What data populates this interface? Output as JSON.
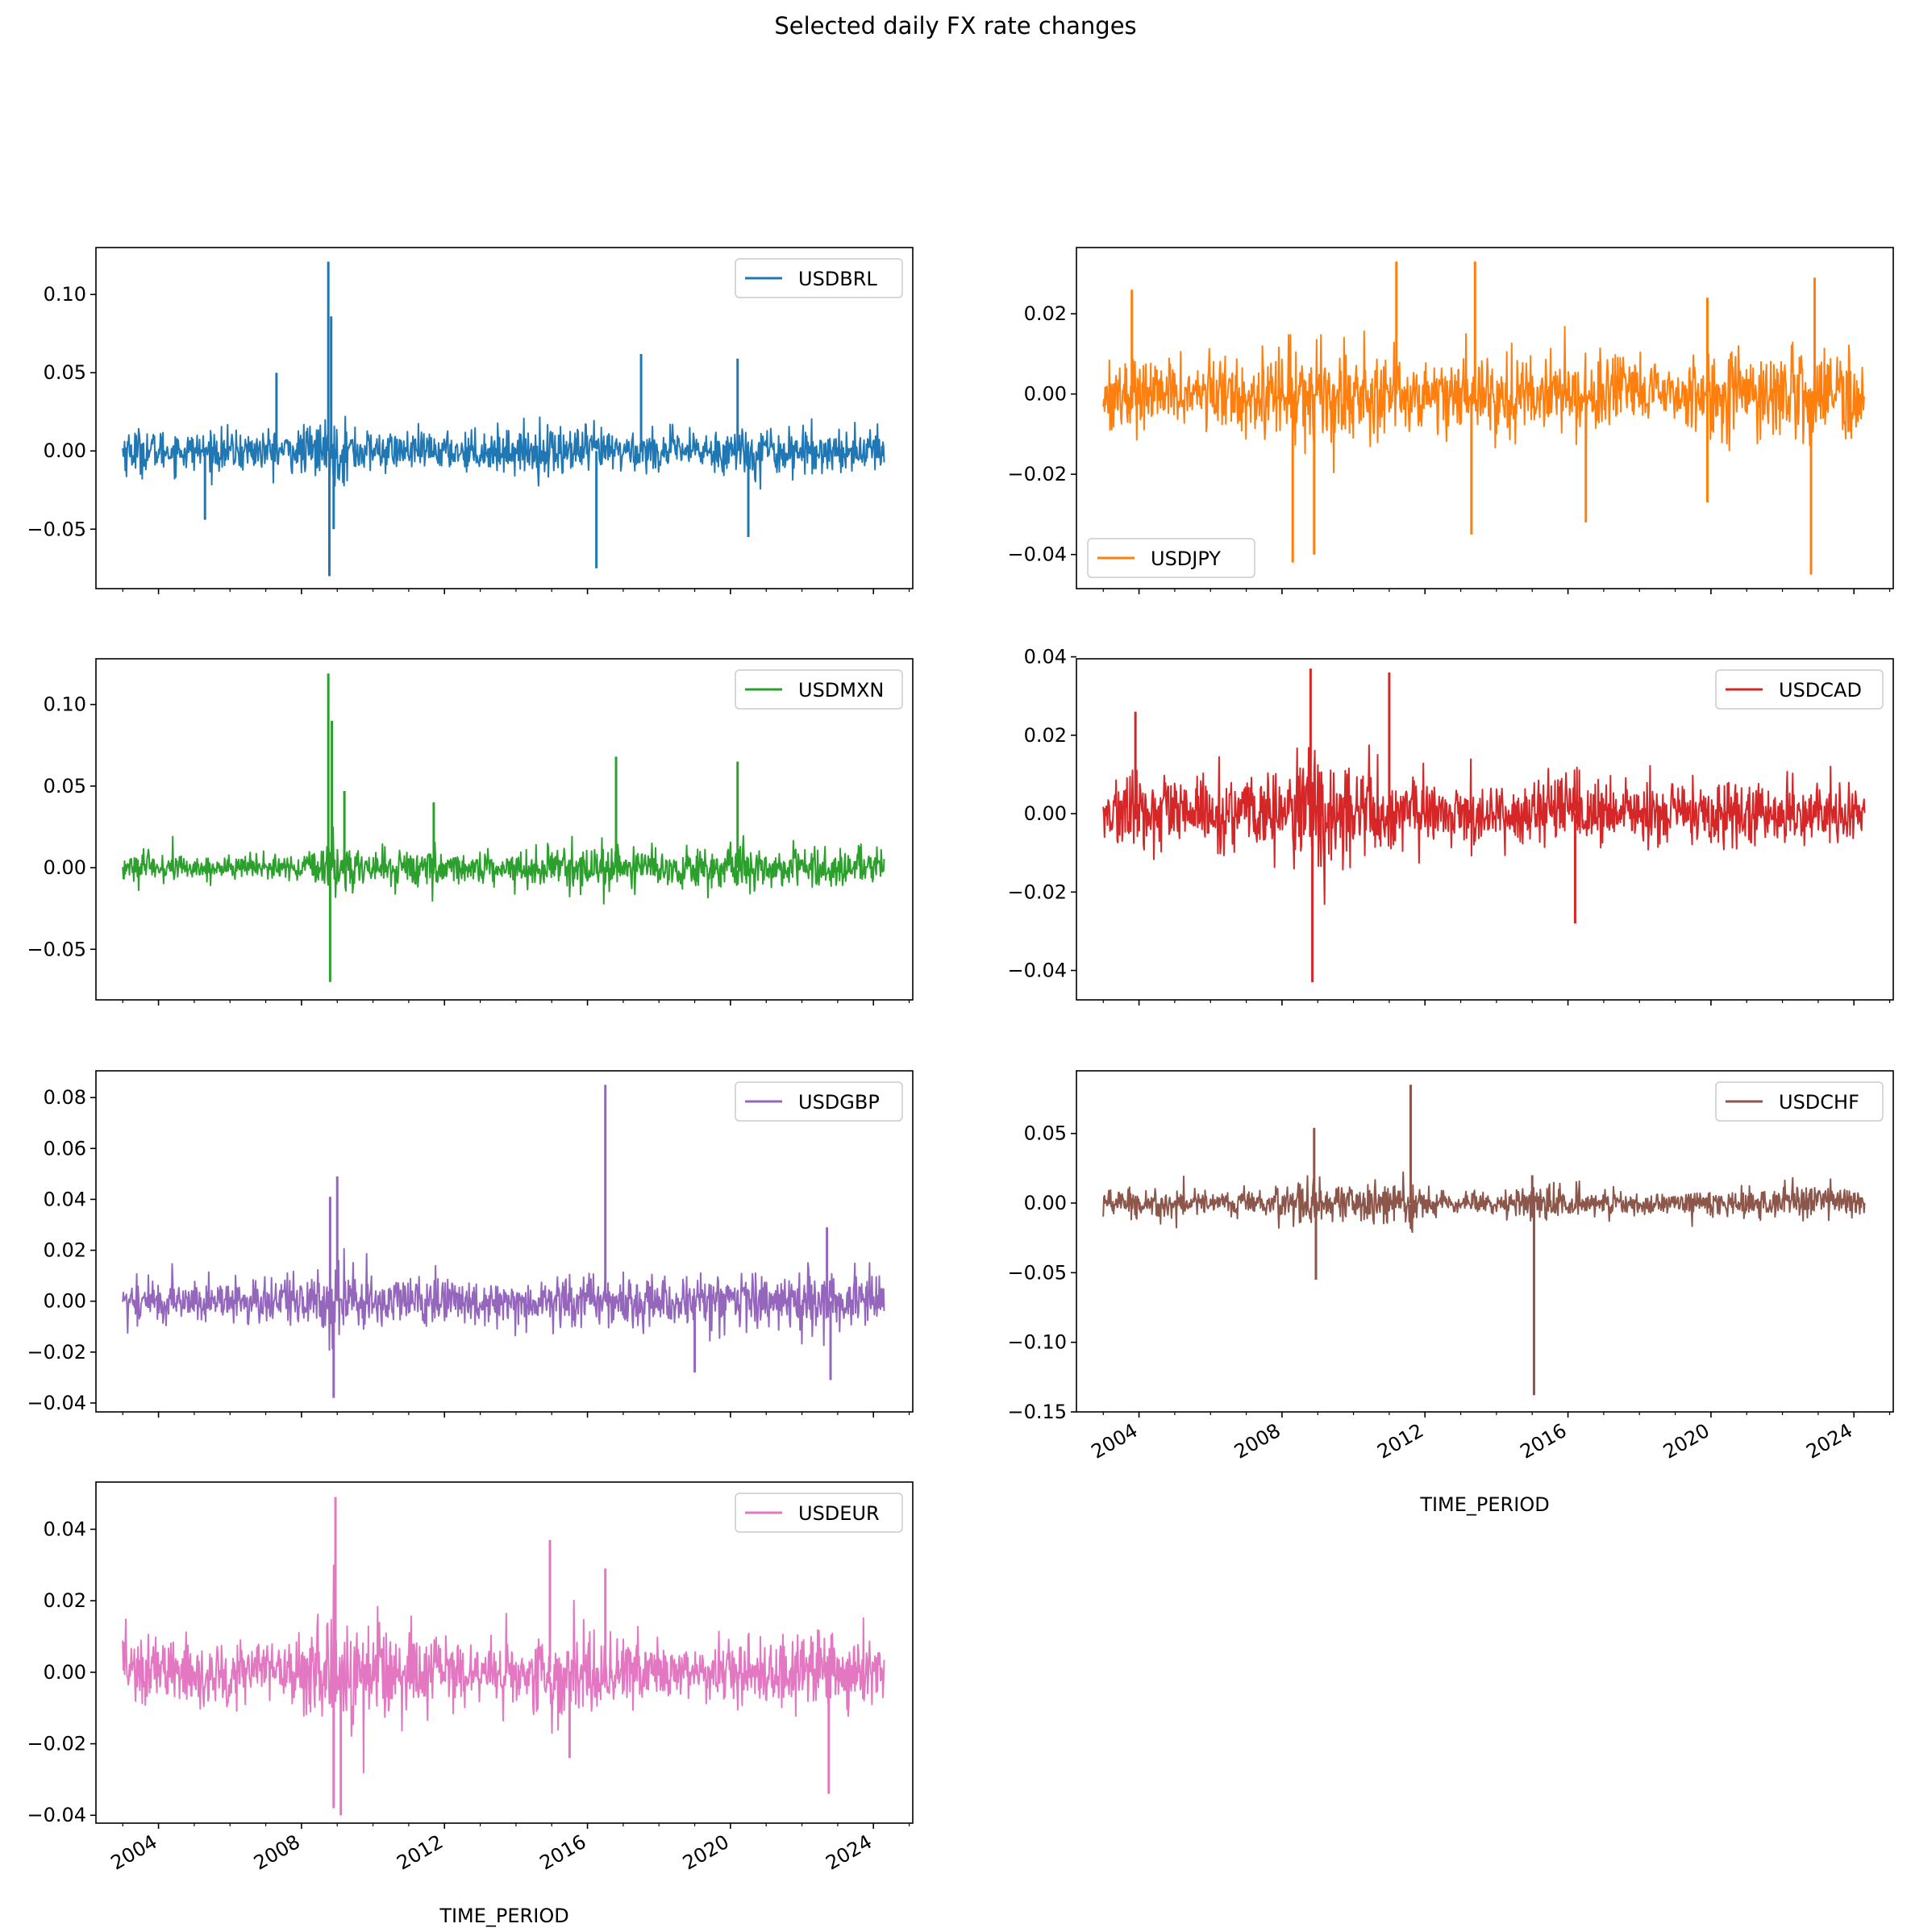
{
  "title": "Selected daily FX rate changes",
  "xlabel": "TIME_PERIOD",
  "x_tick_labels": [
    "2004",
    "2008",
    "2012",
    "2016",
    "2020",
    "2024"
  ],
  "x_tick_years": [
    2004,
    2008,
    2012,
    2016,
    2020,
    2024
  ],
  "chart_data": [
    {
      "type": "line",
      "name": "USDBRL",
      "color": "#1f77b4",
      "x_range": [
        2003.0,
        2024.3
      ],
      "ylim": [
        -0.088,
        0.13
      ],
      "yticks": [
        0.1,
        0.05,
        0.0,
        -0.05
      ],
      "ytick_labels": [
        "0.10",
        "0.05",
        "0.00",
        "−0.05"
      ],
      "legend_loc": "upper right",
      "noise_std": 0.0065,
      "noise_envelope": [
        [
          2003,
          1.2
        ],
        [
          2004,
          1.0
        ],
        [
          2005,
          0.9
        ],
        [
          2006,
          1.0
        ],
        [
          2007,
          1.0
        ],
        [
          2008,
          1.1
        ],
        [
          2008.8,
          1.8
        ],
        [
          2009.3,
          1.4
        ],
        [
          2010,
          1.0
        ],
        [
          2011,
          0.9
        ],
        [
          2012,
          0.9
        ],
        [
          2013,
          1.0
        ],
        [
          2014,
          1.0
        ],
        [
          2015,
          1.3
        ],
        [
          2016,
          1.2
        ],
        [
          2017,
          1.0
        ],
        [
          2018,
          1.0
        ],
        [
          2019,
          0.9
        ],
        [
          2020,
          1.2
        ],
        [
          2021,
          1.3
        ],
        [
          2022,
          1.1
        ],
        [
          2023,
          1.0
        ],
        [
          2024.3,
          1.0
        ]
      ],
      "spikes": [
        [
          2008.75,
          0.121
        ],
        [
          2008.78,
          -0.08
        ],
        [
          2008.83,
          0.086
        ],
        [
          2008.9,
          -0.05
        ],
        [
          2016.25,
          -0.075
        ],
        [
          2017.5,
          0.062
        ],
        [
          2020.2,
          0.059
        ],
        [
          2020.5,
          -0.055
        ],
        [
          2007.3,
          0.05
        ],
        [
          2005.3,
          -0.044
        ]
      ]
    },
    {
      "type": "line",
      "name": "USDJPY",
      "color": "#ff7f0e",
      "x_range": [
        2003.0,
        2024.3
      ],
      "ylim": [
        -0.0485,
        0.0365
      ],
      "yticks": [
        0.02,
        0.0,
        -0.02,
        -0.04
      ],
      "ytick_labels": [
        "0.02",
        "0.00",
        "−0.02",
        "−0.04"
      ],
      "legend_loc": "lower left",
      "noise_std": 0.0045,
      "noise_envelope": [
        [
          2003,
          1.0
        ],
        [
          2005,
          0.9
        ],
        [
          2007,
          1.0
        ],
        [
          2008,
          1.3
        ],
        [
          2009,
          1.5
        ],
        [
          2010,
          1.3
        ],
        [
          2011,
          1.2
        ],
        [
          2012,
          0.9
        ],
        [
          2013,
          1.4
        ],
        [
          2014,
          1.1
        ],
        [
          2015,
          0.9
        ],
        [
          2016,
          1.3
        ],
        [
          2017,
          1.0
        ],
        [
          2019,
          0.8
        ],
        [
          2020,
          1.0
        ],
        [
          2022,
          1.3
        ],
        [
          2023,
          1.4
        ],
        [
          2024.3,
          1.2
        ]
      ],
      "spikes": [
        [
          2008.3,
          -0.042
        ],
        [
          2008.9,
          -0.04
        ],
        [
          2011.2,
          0.033
        ],
        [
          2013.3,
          -0.035
        ],
        [
          2013.4,
          0.033
        ],
        [
          2022.8,
          -0.045
        ],
        [
          2022.9,
          0.029
        ],
        [
          2016.5,
          -0.032
        ],
        [
          2019.9,
          -0.027
        ],
        [
          2019.9,
          0.024
        ],
        [
          2003.8,
          0.026
        ]
      ]
    },
    {
      "type": "line",
      "name": "USDMXN",
      "color": "#2ca02c",
      "x_range": [
        2003.0,
        2024.3
      ],
      "ylim": [
        -0.081,
        0.128
      ],
      "yticks": [
        0.1,
        0.05,
        0.0,
        -0.05
      ],
      "ytick_labels": [
        "0.10",
        "0.05",
        "0.00",
        "−0.05"
      ],
      "legend_loc": "upper right",
      "noise_std": 0.0045,
      "noise_envelope": [
        [
          2003,
          1.0
        ],
        [
          2006,
          0.9
        ],
        [
          2008,
          0.8
        ],
        [
          2008.8,
          2.2
        ],
        [
          2009.5,
          1.5
        ],
        [
          2010,
          1.0
        ],
        [
          2011.7,
          1.5
        ],
        [
          2012,
          1.0
        ],
        [
          2014,
          0.9
        ],
        [
          2015,
          1.4
        ],
        [
          2016,
          1.5
        ],
        [
          2017,
          1.3
        ],
        [
          2018,
          1.2
        ],
        [
          2020,
          1.8
        ],
        [
          2021,
          1.3
        ],
        [
          2022,
          1.2
        ],
        [
          2024.3,
          1.2
        ]
      ],
      "spikes": [
        [
          2008.75,
          0.119
        ],
        [
          2008.8,
          -0.07
        ],
        [
          2008.85,
          0.09
        ],
        [
          2016.8,
          0.068
        ],
        [
          2020.2,
          0.065
        ],
        [
          2011.7,
          0.04
        ],
        [
          2009.2,
          0.047
        ]
      ]
    },
    {
      "type": "line",
      "name": "USDCAD",
      "color": "#d62728",
      "x_range": [
        2003.0,
        2024.3
      ],
      "ylim": [
        -0.0475,
        0.0395
      ],
      "yticks": [
        0.04,
        0.02,
        0.0,
        -0.02,
        -0.04
      ],
      "ytick_labels": [
        "0.04",
        "0.02",
        "0.00",
        "−0.02",
        "−0.04"
      ],
      "legend_loc": "upper right",
      "noise_std": 0.0042,
      "noise_envelope": [
        [
          2003,
          1.1
        ],
        [
          2004,
          1.1
        ],
        [
          2006,
          1.0
        ],
        [
          2007,
          1.1
        ],
        [
          2008,
          1.4
        ],
        [
          2008.8,
          2.3
        ],
        [
          2009.5,
          1.8
        ],
        [
          2010,
          1.5
        ],
        [
          2011,
          1.3
        ],
        [
          2012,
          1.0
        ],
        [
          2014,
          0.8
        ],
        [
          2015,
          1.1
        ],
        [
          2016,
          1.2
        ],
        [
          2017,
          1.0
        ],
        [
          2019,
          0.8
        ],
        [
          2020,
          1.2
        ],
        [
          2022,
          1.1
        ],
        [
          2024.3,
          1.0
        ]
      ],
      "spikes": [
        [
          2008.8,
          0.037
        ],
        [
          2008.85,
          -0.043
        ],
        [
          2011.0,
          0.036
        ],
        [
          2003.9,
          0.026
        ],
        [
          2016.2,
          -0.028
        ]
      ]
    },
    {
      "type": "line",
      "name": "USDGBP",
      "color": "#9467bd",
      "x_range": [
        2003.0,
        2024.3
      ],
      "ylim": [
        -0.0435,
        0.0905
      ],
      "yticks": [
        0.08,
        0.06,
        0.04,
        0.02,
        0.0,
        -0.02,
        -0.04
      ],
      "ytick_labels": [
        "0.08",
        "0.06",
        "0.04",
        "0.02",
        "0.00",
        "−0.02",
        "−0.04"
      ],
      "legend_loc": "upper right",
      "noise_std": 0.0045,
      "noise_envelope": [
        [
          2003,
          1.0
        ],
        [
          2006,
          0.9
        ],
        [
          2008,
          1.0
        ],
        [
          2008.8,
          2.0
        ],
        [
          2009.5,
          1.6
        ],
        [
          2010,
          1.2
        ],
        [
          2012,
          1.0
        ],
        [
          2014,
          0.9
        ],
        [
          2015,
          1.1
        ],
        [
          2016,
          1.3
        ],
        [
          2017,
          1.1
        ],
        [
          2019,
          1.1
        ],
        [
          2020,
          1.2
        ],
        [
          2022,
          1.4
        ],
        [
          2023,
          1.1
        ],
        [
          2024.3,
          1.0
        ]
      ],
      "spikes": [
        [
          2016.5,
          0.085
        ],
        [
          2009.0,
          0.049
        ],
        [
          2008.9,
          -0.038
        ],
        [
          2008.8,
          0.041
        ],
        [
          2022.7,
          0.029
        ],
        [
          2022.8,
          -0.031
        ],
        [
          2019.0,
          -0.028
        ]
      ]
    },
    {
      "type": "line",
      "name": "USDCHF",
      "color": "#8c564b",
      "x_range": [
        2003.0,
        2024.3
      ],
      "ylim": [
        -0.15,
        0.095
      ],
      "yticks": [
        0.05,
        0.0,
        -0.05,
        -0.1,
        -0.15
      ],
      "ytick_labels": [
        "0.05",
        "0.00",
        "−0.05",
        "−0.10",
        "−0.15"
      ],
      "legend_loc": "upper right",
      "noise_std": 0.0052,
      "noise_envelope": [
        [
          2003,
          1.1
        ],
        [
          2006,
          0.9
        ],
        [
          2008,
          1.1
        ],
        [
          2009,
          1.6
        ],
        [
          2010,
          1.2
        ],
        [
          2011.6,
          1.8
        ],
        [
          2012,
          1.0
        ],
        [
          2014,
          0.7
        ],
        [
          2015,
          1.3
        ],
        [
          2016,
          1.0
        ],
        [
          2019,
          0.8
        ],
        [
          2022,
          1.2
        ],
        [
          2024.3,
          1.0
        ]
      ],
      "spikes": [
        [
          2011.6,
          0.085
        ],
        [
          2015.05,
          -0.138
        ],
        [
          2008.9,
          0.054
        ],
        [
          2008.95,
          -0.055
        ],
        [
          2015.0,
          0.02
        ]
      ]
    },
    {
      "type": "line",
      "name": "USDEUR",
      "color": "#e377c2",
      "x_range": [
        2003.0,
        2024.3
      ],
      "ylim": [
        -0.0422,
        0.0532
      ],
      "yticks": [
        0.04,
        0.02,
        0.0,
        -0.02,
        -0.04
      ],
      "ytick_labels": [
        "0.04",
        "0.02",
        "0.00",
        "−0.02",
        "−0.04"
      ],
      "legend_loc": "upper right",
      "noise_std": 0.0048,
      "noise_envelope": [
        [
          2003,
          1.1
        ],
        [
          2006,
          0.9
        ],
        [
          2008,
          1.1
        ],
        [
          2008.8,
          1.9
        ],
        [
          2009.5,
          1.6
        ],
        [
          2010,
          1.4
        ],
        [
          2012,
          1.1
        ],
        [
          2014,
          0.8
        ],
        [
          2015,
          1.4
        ],
        [
          2016,
          1.3
        ],
        [
          2017,
          1.0
        ],
        [
          2019,
          0.8
        ],
        [
          2022,
          1.3
        ],
        [
          2023,
          1.0
        ],
        [
          2024.3,
          1.0
        ]
      ],
      "spikes": [
        [
          2008.95,
          0.049
        ],
        [
          2009.1,
          -0.04
        ],
        [
          2008.9,
          -0.038
        ],
        [
          2014.95,
          0.037
        ],
        [
          2016.5,
          0.029
        ],
        [
          2022.75,
          -0.034
        ],
        [
          2015.5,
          -0.024
        ]
      ]
    }
  ]
}
